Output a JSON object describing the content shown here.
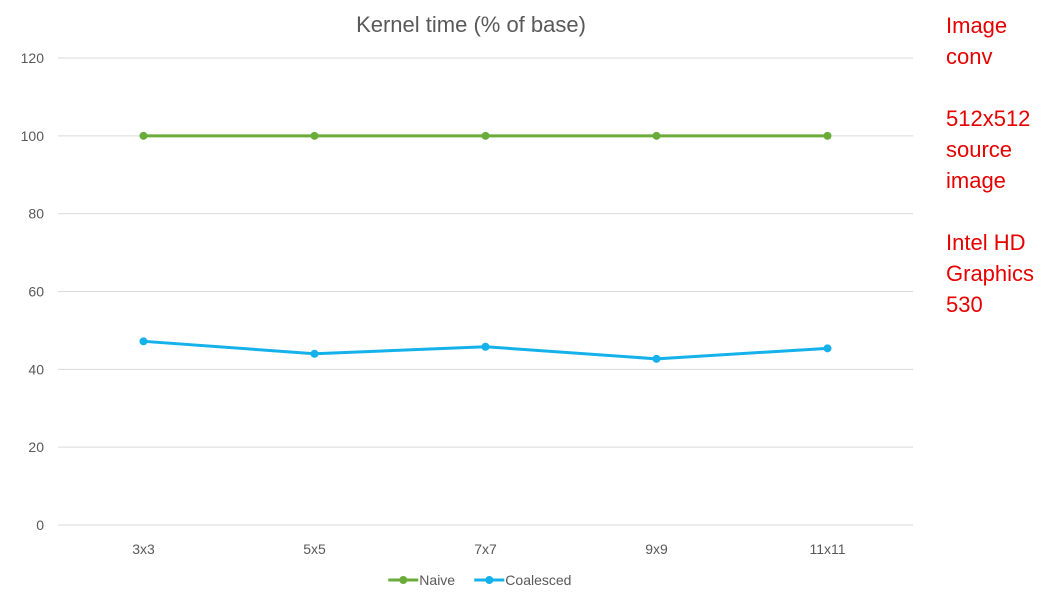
{
  "chart_data": {
    "type": "line",
    "title": "Kernel time (% of base)",
    "categories": [
      "3x3",
      "5x5",
      "7x7",
      "9x9",
      "11x11"
    ],
    "series": [
      {
        "name": "Naive",
        "color": "#6aac39",
        "values": [
          100,
          100,
          100,
          100,
          100
        ]
      },
      {
        "name": "Coalesced",
        "color": "#14b1ea",
        "values": [
          47.2,
          44.0,
          45.8,
          42.7,
          45.4
        ]
      }
    ],
    "yticks": [
      0,
      20,
      40,
      60,
      80,
      100,
      120
    ],
    "ylim": [
      0,
      120
    ],
    "grid": true,
    "legend": "bottom-center",
    "xlabel": "",
    "ylabel": ""
  },
  "side_notes": {
    "color": "#e60000",
    "group1": [
      "Image",
      "conv"
    ],
    "group2": [
      "512x512",
      "source",
      "image"
    ],
    "group3": [
      "Intel HD",
      "Graphics",
      "530"
    ]
  }
}
